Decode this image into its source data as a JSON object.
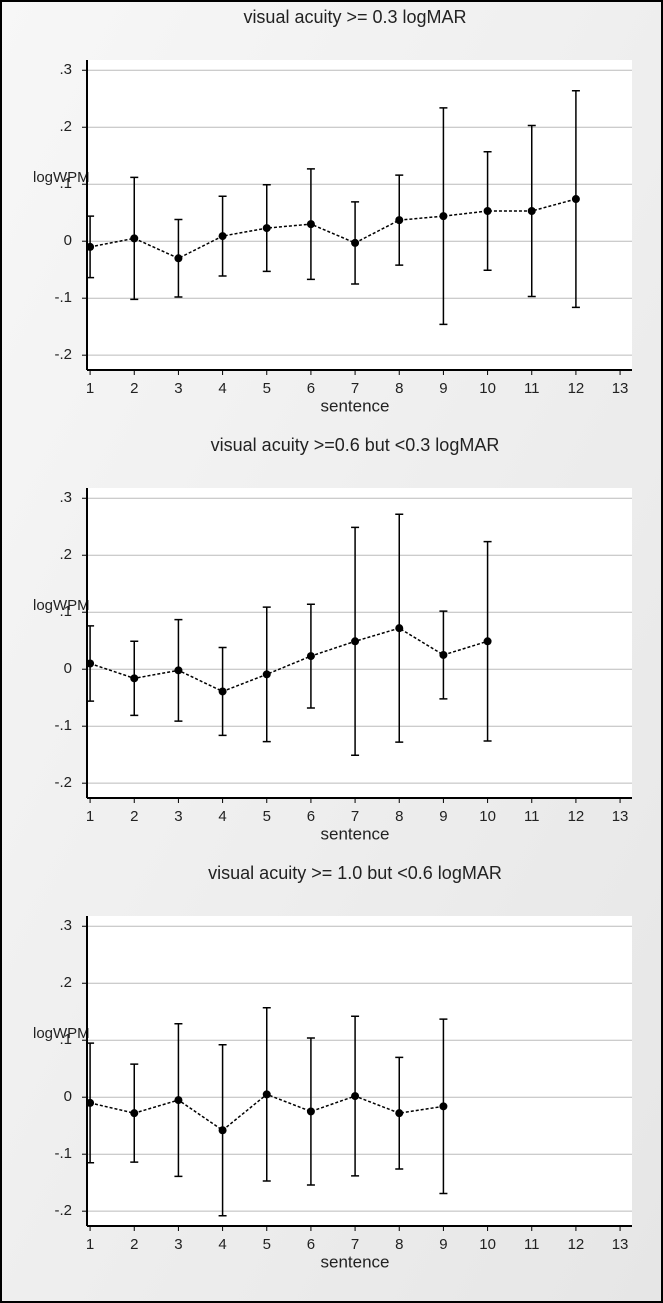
{
  "chart_data": [
    {
      "type": "errorbar",
      "title": "visual acuity >= 0.3 logMAR",
      "xlabel": "sentence",
      "ylabel": "logWPM",
      "x": [
        1,
        2,
        3,
        4,
        5,
        6,
        7,
        8,
        9,
        10,
        11,
        12
      ],
      "values": [
        -0.01,
        0.005,
        -0.03,
        0.009,
        0.023,
        0.03,
        -0.003,
        0.037,
        0.044,
        0.053,
        0.053,
        0.074
      ],
      "errors": [
        0.054,
        0.107,
        0.068,
        0.07,
        0.076,
        0.097,
        0.072,
        0.079,
        0.19,
        0.104,
        0.15,
        0.19
      ],
      "color": "#000000",
      "xlim": [
        0.93,
        13.27
      ],
      "xticks": [
        1,
        2,
        3,
        4,
        5,
        6,
        7,
        8,
        9,
        10,
        11,
        12,
        13
      ],
      "ylim": [
        -0.226,
        0.318
      ],
      "yticks": [
        {
          "value": 0.3,
          "label": ".3"
        },
        {
          "value": 0.2,
          "label": ".2"
        },
        {
          "value": 0.1,
          "label": ".1"
        },
        0,
        {
          "value": -0.1,
          "label": "-.1"
        },
        {
          "value": -0.2,
          "label": "-.2"
        }
      ],
      "grid": true
    },
    {
      "type": "errorbar",
      "title": "visual acuity >=0.6 but <0.3 logMAR",
      "xlabel": "sentence",
      "ylabel": "logWPM",
      "x": [
        1,
        2,
        3,
        4,
        5,
        6,
        7,
        8,
        9,
        10
      ],
      "values": [
        0.01,
        -0.016,
        -0.002,
        -0.039,
        -0.009,
        0.023,
        0.049,
        0.072,
        0.025,
        0.049
      ],
      "errors": [
        0.066,
        0.065,
        0.089,
        0.077,
        0.118,
        0.091,
        0.2,
        0.2,
        0.077,
        0.175
      ],
      "color": "#000000",
      "xlim": [
        0.93,
        13.27
      ],
      "xticks": [
        1,
        2,
        3,
        4,
        5,
        6,
        7,
        8,
        9,
        10,
        11,
        12,
        13
      ],
      "ylim": [
        -0.226,
        0.318
      ],
      "yticks": [
        {
          "value": 0.3,
          "label": ".3"
        },
        {
          "value": 0.2,
          "label": ".2"
        },
        {
          "value": 0.1,
          "label": ".1"
        },
        0,
        {
          "value": -0.1,
          "label": "-.1"
        },
        {
          "value": -0.2,
          "label": "-.2"
        }
      ],
      "grid": true
    },
    {
      "type": "errorbar",
      "title": "visual acuity >= 1.0 but <0.6 logMAR",
      "xlabel": "sentence",
      "ylabel": "logWPM",
      "x": [
        1,
        2,
        3,
        4,
        5,
        6,
        7,
        8,
        9
      ],
      "values": [
        -0.01,
        -0.028,
        -0.005,
        -0.058,
        0.005,
        -0.025,
        0.002,
        -0.028,
        -0.016
      ],
      "errors": [
        0.105,
        0.086,
        0.134,
        0.15,
        0.152,
        0.129,
        0.14,
        0.098,
        0.153
      ],
      "color": "#000000",
      "xlim": [
        0.93,
        13.27
      ],
      "xticks": [
        1,
        2,
        3,
        4,
        5,
        6,
        7,
        8,
        9,
        10,
        11,
        12,
        13
      ],
      "ylim": [
        -0.226,
        0.318
      ],
      "yticks": [
        {
          "value": 0.3,
          "label": ".3"
        },
        {
          "value": 0.2,
          "label": ".2"
        },
        {
          "value": 0.1,
          "label": ".1"
        },
        0,
        {
          "value": -0.1,
          "label": "-.1"
        },
        {
          "value": -0.2,
          "label": "-.2"
        }
      ],
      "grid": true
    }
  ]
}
